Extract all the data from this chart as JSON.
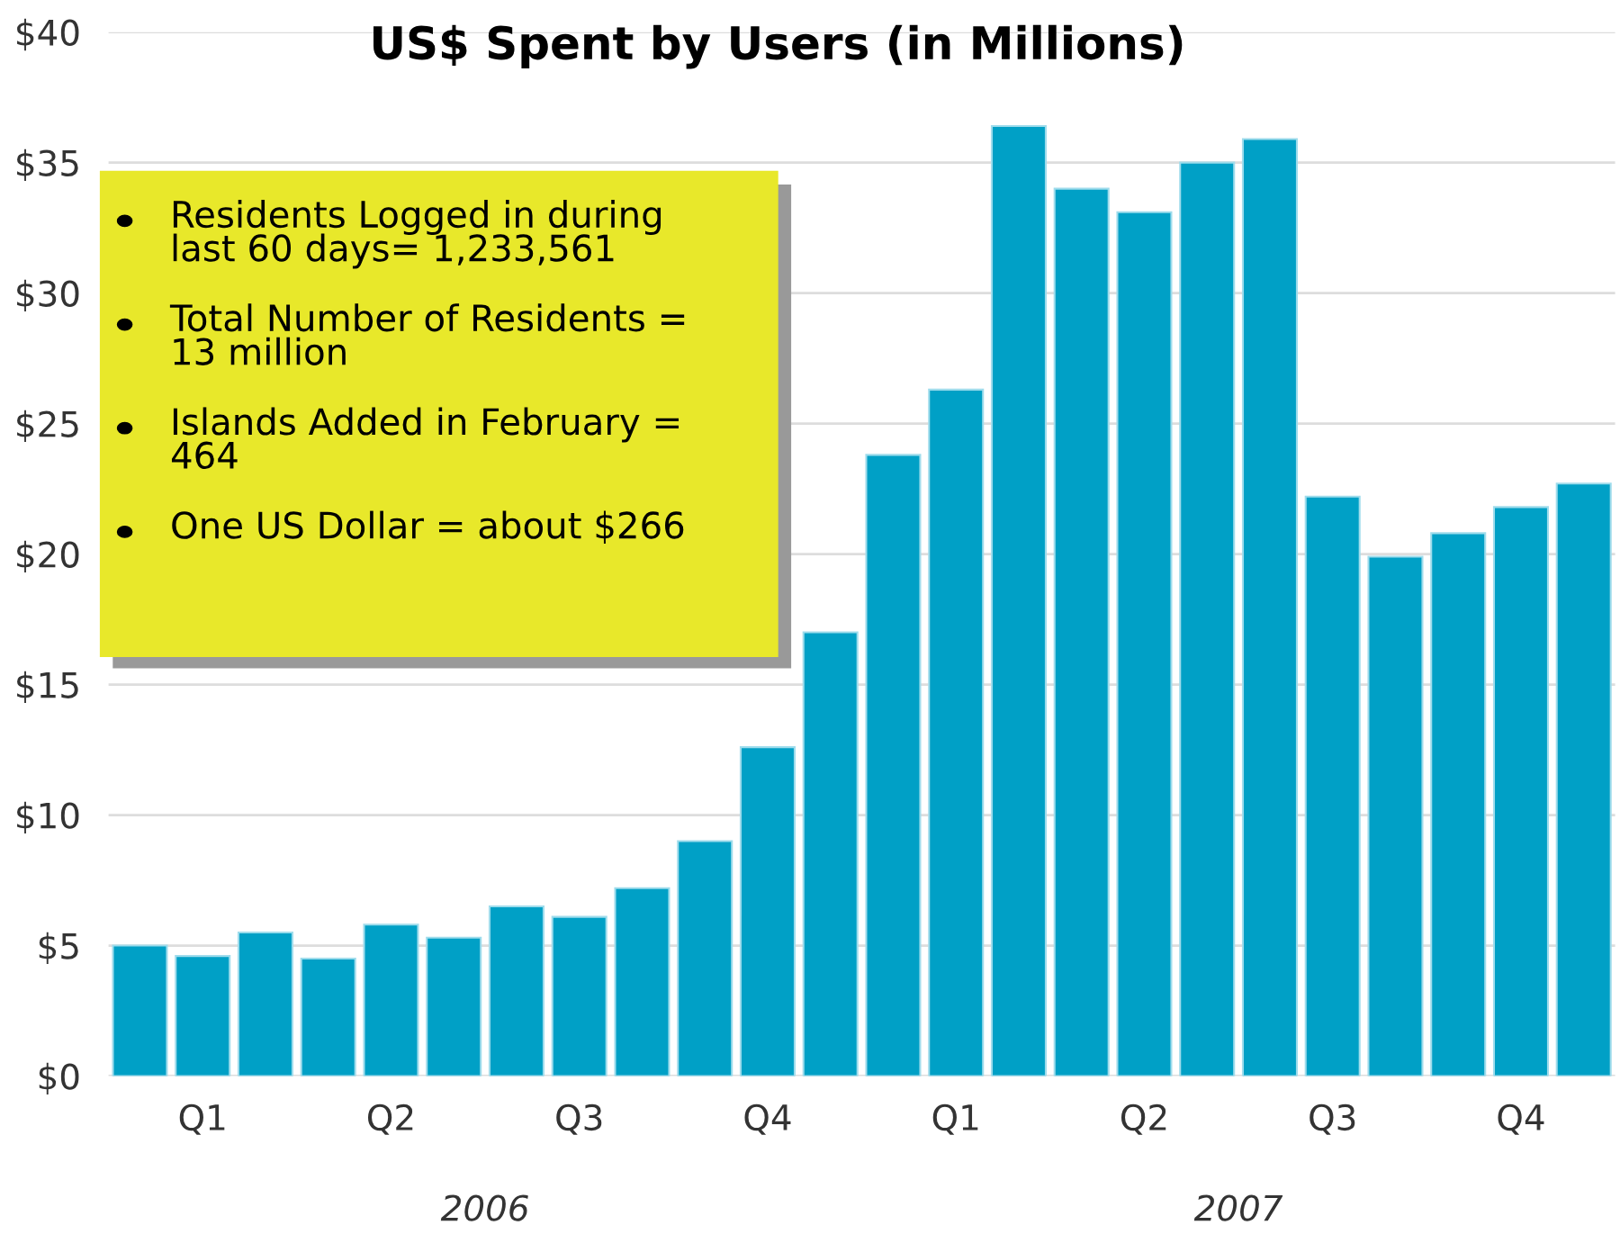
{
  "chart_data": {
    "type": "bar",
    "title": "US$ Spent by Users (in Millions)",
    "categories": [
      null,
      "Q1",
      null,
      null,
      "Q2",
      null,
      null,
      "Q3",
      null,
      null,
      "Q4",
      null,
      null,
      "Q1",
      null,
      null,
      "Q2",
      null,
      null,
      "Q3",
      null,
      null,
      "Q4",
      null
    ],
    "values": [
      5.0,
      4.6,
      5.5,
      4.5,
      5.8,
      5.3,
      6.5,
      6.1,
      7.2,
      9.0,
      12.6,
      17.0,
      23.8,
      26.3,
      36.4,
      34.0,
      33.1,
      35.0,
      35.9,
      22.2,
      19.9,
      20.8,
      21.8,
      22.7
    ],
    "color": "#00a0c6",
    "ylim": [
      0,
      40
    ],
    "yticks": [
      {
        "value": 0,
        "label": "$0"
      },
      {
        "value": 5,
        "label": "$5"
      },
      {
        "value": 10,
        "label": "$10"
      },
      {
        "value": 15,
        "label": "$15"
      },
      {
        "value": 20,
        "label": "$20"
      },
      {
        "value": 25,
        "label": "$25"
      },
      {
        "value": 30,
        "label": "$30"
      },
      {
        "value": 35,
        "label": "$35"
      },
      {
        "value": 40,
        "label": "$40"
      }
    ],
    "grid": "y",
    "annotations": [
      "Residents Logged in during last 60 days= 1,233,561",
      "Total Number of Residents = 13 million",
      "Islands Added in February = 464",
      "One US Dollar = about $266",
      "2006",
      "2007"
    ]
  }
}
